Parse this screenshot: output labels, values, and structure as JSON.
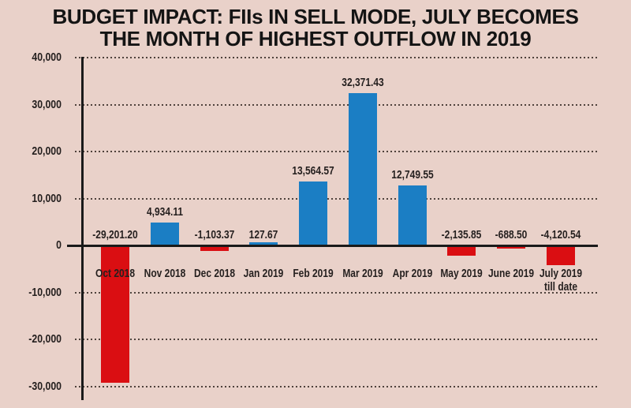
{
  "title": {
    "line1": "BUDGET IMPACT: FIIs IN SELL MODE, JULY BECOMES",
    "line2": "THE MONTH OF HIGHEST OUTFLOW IN 2019"
  },
  "chart_data": {
    "type": "bar",
    "title": "BUDGET IMPACT: FIIs IN SELL MODE, JULY BECOMES THE MONTH OF HIGHEST OUTFLOW IN 2019",
    "categories": [
      "Oct 2018",
      "Nov 2018",
      "Dec 2018",
      "Jan 2019",
      "Feb 2019",
      "Mar 2019",
      "Apr 2019",
      "May 2019",
      "June 2019",
      "July 2019"
    ],
    "category_note": {
      "index": 9,
      "text": "till date"
    },
    "values": [
      -29201.2,
      4934.11,
      -1103.37,
      127.67,
      13564.57,
      32371.43,
      12749.55,
      -2135.85,
      -688.5,
      -4120.54
    ],
    "value_labels": [
      "-29,201.20",
      "4,934.11",
      "-1,103.37",
      "127.67",
      "13,564.57",
      "32,371.43",
      "12,749.55",
      "-2,135.85",
      "-688.50",
      "-4,120.54"
    ],
    "y_ticks": [
      {
        "value": 40000,
        "label": "40,000"
      },
      {
        "value": 30000,
        "label": "30,000"
      },
      {
        "value": 20000,
        "label": "20,000"
      },
      {
        "value": 10000,
        "label": "10,000"
      },
      {
        "value": 0,
        "label": "0"
      },
      {
        "value": -10000,
        "label": "-10,000"
      },
      {
        "value": -20000,
        "label": "-20,000"
      },
      {
        "value": -30000,
        "label": "-30,000"
      }
    ],
    "ylim": [
      -30000,
      40000
    ],
    "xlabel": "",
    "ylabel": "",
    "grid": "horizontal-dotted",
    "legend": "none",
    "colors": {
      "positive_bar": "#1b7ec4",
      "negative_bar": "#da0e12",
      "background": "#e9d1c9",
      "axis_line": "#1a1a1a",
      "text": "#241f1e",
      "title_text": "#141414",
      "grid_dots": "#4f423c"
    }
  }
}
